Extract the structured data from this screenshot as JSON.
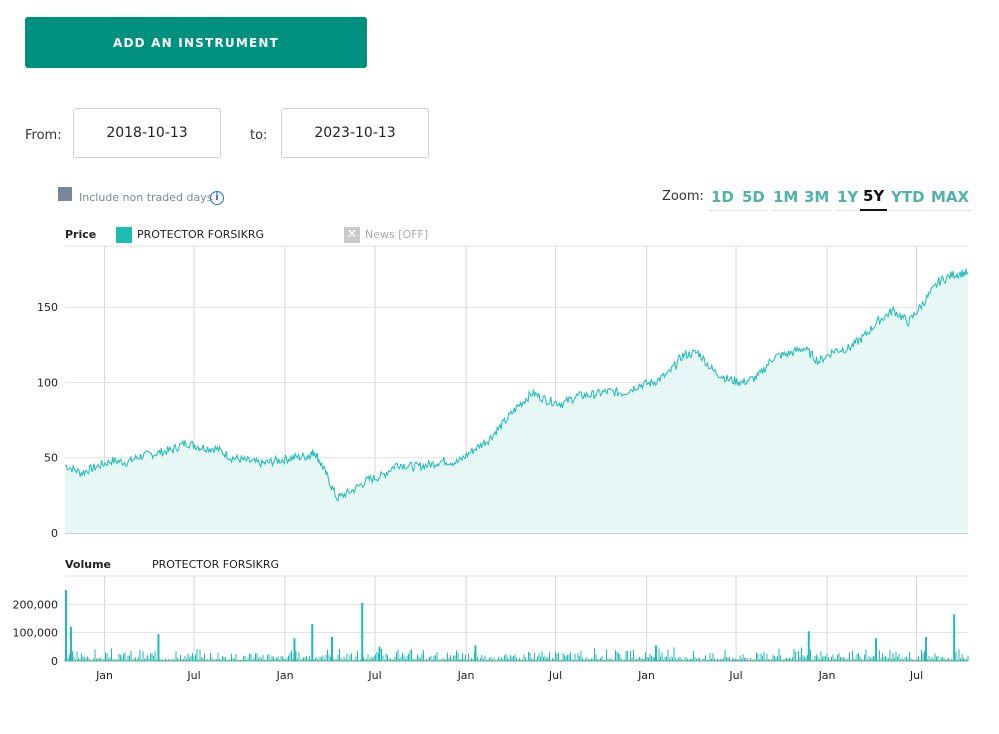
{
  "toolbar": {
    "add_label": "ADD AN INSTRUMENT"
  },
  "range": {
    "from_label": "From:",
    "from_value": "2018-10-13",
    "to_label": "to:",
    "to_value": "2023-10-13"
  },
  "options": {
    "non_traded_label": "Include non traded days",
    "info_glyph": "i"
  },
  "zoom": {
    "label": "Zoom:",
    "buttons": [
      "1D",
      "5D",
      "1M",
      "3M",
      "1Y",
      "5Y",
      "YTD",
      "MAX"
    ],
    "active": "5Y"
  },
  "legend": {
    "price_title": "Price",
    "series_name": "PROTECTOR FORSIKRG",
    "news_label": "News [OFF]",
    "volume_title": "Volume",
    "volume_series_name": "PROTECTOR FORSIKRG"
  },
  "colors": {
    "accent": "#00907e",
    "series": "#1bbcb4",
    "fill": "#e6f7f5"
  },
  "chart_data": [
    {
      "type": "area",
      "title": "Price",
      "series": [
        {
          "name": "PROTECTOR FORSIKRG",
          "x": [
            "2018-10-13",
            "2018-11-15",
            "2018-12-15",
            "2019-01-15",
            "2019-02-15",
            "2019-03-15",
            "2019-04-15",
            "2019-05-15",
            "2019-06-15",
            "2019-07-15",
            "2019-08-15",
            "2019-09-15",
            "2019-10-15",
            "2019-11-15",
            "2019-12-15",
            "2020-01-15",
            "2020-02-15",
            "2020-03-01",
            "2020-03-20",
            "2020-04-15",
            "2020-05-15",
            "2020-06-15",
            "2020-07-15",
            "2020-08-15",
            "2020-09-15",
            "2020-10-15",
            "2020-11-15",
            "2020-12-15",
            "2021-01-15",
            "2021-02-15",
            "2021-03-15",
            "2021-04-15",
            "2021-05-15",
            "2021-06-15",
            "2021-07-15",
            "2021-08-15",
            "2021-09-15",
            "2021-10-15",
            "2021-11-15",
            "2021-12-15",
            "2022-01-15",
            "2022-02-15",
            "2022-03-15",
            "2022-04-15",
            "2022-05-15",
            "2022-06-15",
            "2022-07-15",
            "2022-08-15",
            "2022-09-15",
            "2022-10-15",
            "2022-11-15",
            "2022-12-15",
            "2023-01-15",
            "2023-02-15",
            "2023-03-15",
            "2023-04-15",
            "2023-05-15",
            "2023-06-15",
            "2023-07-15",
            "2023-08-15",
            "2023-09-15",
            "2023-10-13"
          ],
          "values": [
            45,
            40,
            44,
            48,
            47,
            51,
            53,
            55,
            60,
            57,
            56,
            50,
            48,
            46,
            48,
            50,
            51,
            54,
            42,
            23,
            28,
            35,
            38,
            46,
            44,
            45,
            48,
            47,
            55,
            62,
            72,
            84,
            93,
            88,
            86,
            91,
            92,
            94,
            93,
            98,
            100,
            106,
            118,
            120,
            108,
            102,
            100,
            104,
            117,
            119,
            123,
            114,
            121,
            123,
            130,
            141,
            148,
            140,
            153,
            167,
            172,
            173
          ]
        }
      ],
      "ylim": [
        0,
        190
      ],
      "yticks": [
        0,
        50,
        100,
        150
      ],
      "xticks": [
        "Jan",
        "Jul",
        "Jan",
        "Jul",
        "Jan",
        "Jul",
        "Jan",
        "Jul",
        "Jan",
        "Jul"
      ]
    },
    {
      "type": "bar",
      "title": "Volume",
      "series": [
        {
          "name": "PROTECTOR FORSIKRG",
          "spikes": [
            {
              "x": "2018-10-15",
              "value": 250000
            },
            {
              "x": "2018-10-25",
              "value": 120000
            },
            {
              "x": "2019-04-20",
              "value": 95000
            },
            {
              "x": "2020-01-20",
              "value": 80000
            },
            {
              "x": "2020-02-25",
              "value": 130000
            },
            {
              "x": "2020-04-05",
              "value": 85000
            },
            {
              "x": "2020-06-05",
              "value": 205000
            },
            {
              "x": "2020-07-10",
              "value": 50000
            },
            {
              "x": "2021-01-20",
              "value": 55000
            },
            {
              "x": "2022-01-20",
              "value": 55000
            },
            {
              "x": "2022-11-25",
              "value": 105000
            },
            {
              "x": "2023-04-10",
              "value": 80000
            },
            {
              "x": "2023-07-20",
              "value": 85000
            },
            {
              "x": "2023-09-15",
              "value": 165000
            }
          ],
          "baseline": 18000
        }
      ],
      "ylim": [
        0,
        300000
      ],
      "yticks": [
        "0",
        "100,000",
        "200,000"
      ]
    }
  ]
}
